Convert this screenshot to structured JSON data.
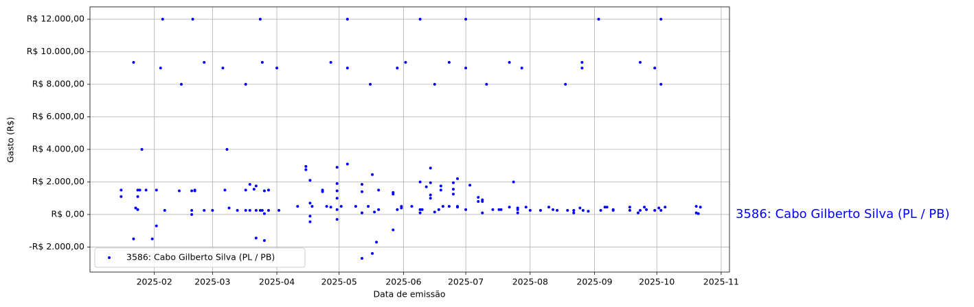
{
  "chart_data": {
    "type": "scatter",
    "x_label": "Data de emissão",
    "y_label": "Gasto (R$)",
    "annotation": "3586: Cabo Gilberto Silva (PL / PB)",
    "xlim": [
      0,
      308
    ],
    "ylim": [
      -3540,
      12760
    ],
    "grid": true,
    "legend": "lower left",
    "xticks": [
      {
        "value": 31,
        "label": "2025-02"
      },
      {
        "value": 59,
        "label": "2025-03"
      },
      {
        "value": 90,
        "label": "2025-04"
      },
      {
        "value": 120,
        "label": "2025-05"
      },
      {
        "value": 151,
        "label": "2025-06"
      },
      {
        "value": 181,
        "label": "2025-07"
      },
      {
        "value": 212,
        "label": "2025-08"
      },
      {
        "value": 243,
        "label": "2025-09"
      },
      {
        "value": 273,
        "label": "2025-10"
      },
      {
        "value": 304,
        "label": "2025-11"
      }
    ],
    "yticks": [
      {
        "value": -2000,
        "label": "-R$ 2.000,00"
      },
      {
        "value": 0,
        "label": "R$ 0,00"
      },
      {
        "value": 2000,
        "label": "R$ 2.000,00"
      },
      {
        "value": 4000,
        "label": "R$ 4.000,00"
      },
      {
        "value": 6000,
        "label": "R$ 6.000,00"
      },
      {
        "value": 8000,
        "label": "R$ 8.000,00"
      },
      {
        "value": 10000,
        "label": "R$ 10.000,00"
      },
      {
        "value": 12000,
        "label": "R$ 12.000,00"
      }
    ],
    "series": [
      {
        "name": "3586: Cabo Gilberto Silva (PL / PB)",
        "color": "#0000ff",
        "x": [
          15,
          15,
          21,
          21,
          22,
          23,
          23,
          23,
          24,
          25,
          27,
          30,
          32,
          32,
          34,
          35,
          36,
          43,
          44,
          49,
          49,
          49,
          49.5,
          50.5,
          50.5,
          55,
          55,
          59,
          64,
          65,
          66,
          67,
          71,
          75,
          75,
          75,
          77,
          77,
          79,
          80,
          80,
          80,
          82,
          82,
          83,
          83,
          84,
          84,
          84,
          86,
          86,
          90,
          91,
          100,
          104,
          104,
          106,
          106,
          106,
          106,
          107,
          112,
          112,
          114,
          116,
          116,
          119,
          119,
          119,
          119,
          119,
          119,
          121,
          124,
          124,
          124,
          128,
          131,
          131,
          131,
          131,
          134,
          135,
          136,
          136,
          137,
          138,
          139,
          139,
          146,
          146,
          146,
          148,
          148,
          150,
          150,
          152,
          155,
          159,
          159,
          159,
          159,
          160,
          162,
          164,
          164,
          164,
          164,
          166,
          166,
          168,
          169,
          169,
          170,
          173,
          173,
          175,
          175,
          175,
          177,
          177,
          177,
          181,
          181,
          181,
          183,
          187,
          187,
          189,
          189,
          189,
          191,
          194,
          197,
          198,
          202,
          202,
          204,
          206,
          206,
          206,
          208,
          210,
          212,
          217,
          221,
          223,
          225,
          229,
          230,
          233,
          233,
          236,
          237,
          237,
          237.5,
          240,
          245,
          246,
          248,
          249,
          252,
          252,
          260,
          260,
          264,
          265,
          265,
          267,
          268,
          272,
          272,
          274,
          275,
          275,
          275,
          277,
          292,
          292,
          293,
          294
        ],
        "values": [
          1500,
          1100,
          9350,
          -1500,
          400,
          1500,
          1100,
          300,
          1500,
          4000,
          1500,
          -1500,
          1500,
          -700,
          9000,
          12000,
          250,
          1450,
          8000,
          1450,
          250,
          0,
          12000,
          1500,
          1450,
          9350,
          250,
          250,
          9000,
          1500,
          4000,
          400,
          250,
          8000,
          1500,
          250,
          1850,
          250,
          1550,
          1750,
          250,
          -1450,
          12000,
          250,
          9350,
          250,
          1450,
          50,
          -1600,
          1500,
          250,
          9000,
          250,
          500,
          2950,
          2750,
          2100,
          700,
          -100,
          -450,
          500,
          1500,
          1400,
          500,
          9350,
          450,
          2900,
          1900,
          1450,
          1000,
          300,
          -300,
          500,
          12000,
          9000,
          3100,
          500,
          -2700,
          1850,
          1400,
          100,
          500,
          8000,
          -2400,
          2450,
          150,
          -1700,
          1500,
          300,
          1350,
          1250,
          -950,
          9000,
          300,
          500,
          400,
          9350,
          500,
          12000,
          2000,
          300,
          100,
          300,
          1700,
          2850,
          1950,
          1200,
          1000,
          8000,
          150,
          300,
          1750,
          1500,
          500,
          9350,
          500,
          1950,
          1550,
          1250,
          2200,
          500,
          450,
          12000,
          9000,
          300,
          1800,
          1050,
          800,
          900,
          800,
          100,
          8000,
          300,
          300,
          300,
          9350,
          450,
          2000,
          300,
          100,
          400,
          9000,
          450,
          250,
          250,
          450,
          300,
          250,
          8000,
          250,
          250,
          100,
          400,
          9350,
          9000,
          250,
          200,
          12000,
          250,
          450,
          450,
          300,
          250,
          450,
          250,
          100,
          9350,
          250,
          450,
          300,
          9000,
          250,
          400,
          12000,
          8000,
          250,
          450,
          500,
          100,
          50,
          450
        ]
      }
    ]
  }
}
